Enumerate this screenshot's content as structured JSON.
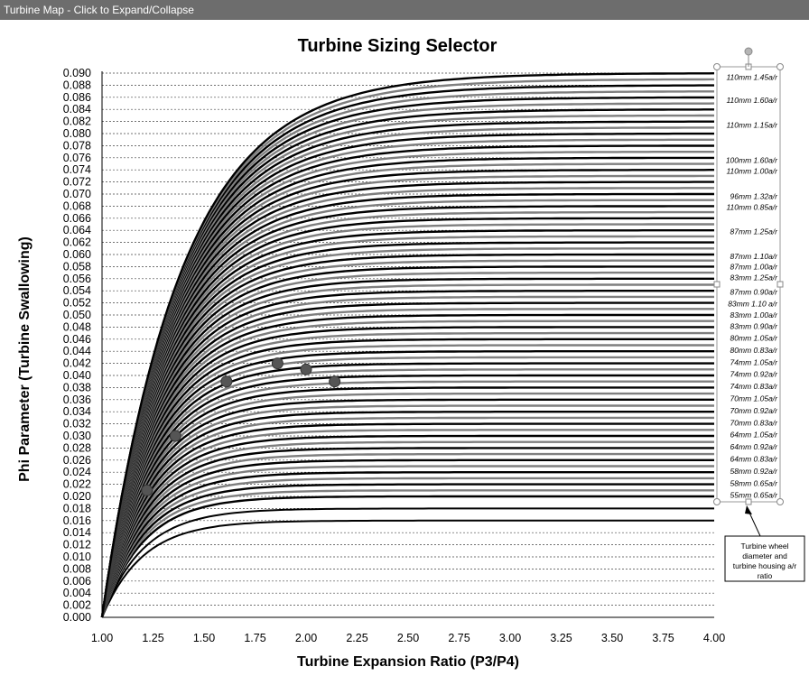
{
  "window": {
    "title": "Turbine Map - Click to Expand/Collapse"
  },
  "chart_data": {
    "type": "line",
    "title": "Turbine Sizing Selector",
    "xlabel": "Turbine Expansion Ratio (P3/P4)",
    "ylabel": "Phi Parameter (Turbine Swallowing)",
    "xlim": [
      1.0,
      4.0
    ],
    "ylim": [
      0.0,
      0.09
    ],
    "x_ticks": [
      "1.00",
      "1.25",
      "1.50",
      "1.75",
      "2.00",
      "2.25",
      "2.50",
      "2.75",
      "3.00",
      "3.25",
      "3.50",
      "3.75",
      "4.00"
    ],
    "y_ticks": [
      "0.000",
      "0.002",
      "0.004",
      "0.006",
      "0.008",
      "0.010",
      "0.012",
      "0.014",
      "0.016",
      "0.018",
      "0.020",
      "0.022",
      "0.024",
      "0.026",
      "0.028",
      "0.030",
      "0.032",
      "0.034",
      "0.036",
      "0.038",
      "0.040",
      "0.042",
      "0.044",
      "0.046",
      "0.048",
      "0.050",
      "0.052",
      "0.054",
      "0.056",
      "0.058",
      "0.060",
      "0.062",
      "0.064",
      "0.066",
      "0.068",
      "0.070",
      "0.072",
      "0.074",
      "0.076",
      "0.078",
      "0.080",
      "0.082",
      "0.084",
      "0.086",
      "0.088",
      "0.090"
    ],
    "grid": "horizontal-dashed",
    "curve_plateaus": [
      0.02,
      0.021,
      0.022,
      0.023,
      0.024,
      0.025,
      0.026,
      0.027,
      0.028,
      0.029,
      0.03,
      0.031,
      0.032,
      0.033,
      0.034,
      0.035,
      0.036,
      0.037,
      0.038,
      0.039,
      0.04,
      0.041,
      0.042,
      0.043,
      0.044,
      0.045,
      0.046,
      0.047,
      0.048,
      0.049,
      0.05,
      0.051,
      0.052,
      0.053,
      0.054,
      0.055,
      0.056,
      0.057,
      0.058,
      0.059,
      0.06,
      0.061,
      0.062,
      0.063,
      0.064,
      0.065,
      0.066,
      0.067,
      0.068,
      0.069,
      0.07,
      0.071,
      0.072,
      0.073,
      0.074,
      0.075,
      0.076,
      0.077,
      0.078,
      0.079,
      0.08,
      0.081,
      0.082,
      0.083,
      0.084,
      0.085,
      0.086,
      0.087,
      0.088,
      0.089,
      0.09
    ],
    "extra_curves": [
      0.016,
      0.018
    ],
    "series_colors": [
      "#000000",
      "#7f7f7f"
    ],
    "labels": [
      {
        "text": "110mm 1.45a/r",
        "y": 0.0893
      },
      {
        "text": "110mm 1.60a/r",
        "y": 0.0855
      },
      {
        "text": "110mm 1.15a/r",
        "y": 0.0814
      },
      {
        "text": "100mm 1.60a/r",
        "y": 0.0756
      },
      {
        "text": "110mm 1.00a/r",
        "y": 0.0738
      },
      {
        "text": "96mm 1.32a/r",
        "y": 0.0696
      },
      {
        "text": "110mm 0.85a/r",
        "y": 0.0678
      },
      {
        "text": "87mm 1.25a/r",
        "y": 0.0638
      },
      {
        "text": "87mm 1.10a/r",
        "y": 0.0597
      },
      {
        "text": "87mm 1.00a/r",
        "y": 0.058
      },
      {
        "text": "83mm 1.25a/r",
        "y": 0.0562
      },
      {
        "text": "87mm 0.90a/r",
        "y": 0.0538
      },
      {
        "text": "83mm 1.10 a/r",
        "y": 0.0519
      },
      {
        "text": "83mm 1.00a/r",
        "y": 0.05
      },
      {
        "text": "83mm 0.90a/r",
        "y": 0.0481
      },
      {
        "text": "80mm 1.05a/r",
        "y": 0.0462
      },
      {
        "text": "80mm 0.83a/r",
        "y": 0.0442
      },
      {
        "text": "74mm 1.05a/r",
        "y": 0.0422
      },
      {
        "text": "74mm 0.92a/r",
        "y": 0.0402
      },
      {
        "text": "74mm 0.83a/r",
        "y": 0.0382
      },
      {
        "text": "70mm 1.05a/r",
        "y": 0.0362
      },
      {
        "text": "70mm 0.92a/r",
        "y": 0.0342
      },
      {
        "text": "70mm 0.83a/r",
        "y": 0.0322
      },
      {
        "text": "64mm 1.05a/r",
        "y": 0.0302
      },
      {
        "text": "64mm 0.92a/r",
        "y": 0.0282
      },
      {
        "text": "64mm 0.83a/r",
        "y": 0.0262
      },
      {
        "text": "58mm 0.92a/r",
        "y": 0.0242
      },
      {
        "text": "58mm 0.65a/r",
        "y": 0.0222
      },
      {
        "text": "55mm 0.65a/r",
        "y": 0.0202
      }
    ],
    "points": [
      {
        "x": 1.22,
        "y": 0.021
      },
      {
        "x": 1.36,
        "y": 0.03
      },
      {
        "x": 1.61,
        "y": 0.039
      },
      {
        "x": 1.86,
        "y": 0.042
      },
      {
        "x": 2.0,
        "y": 0.041
      },
      {
        "x": 2.14,
        "y": 0.039
      }
    ],
    "callout": "Turbine wheel diameter and turbine housing a/r ratio"
  }
}
